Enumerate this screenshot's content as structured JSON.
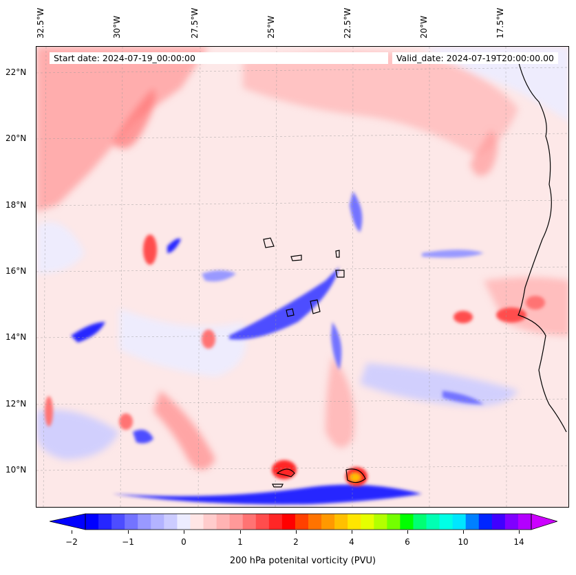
{
  "lon_labels": [
    "32.5°W",
    "30°W",
    "27.5°W",
    "25°W",
    "22.5°W",
    "20°W",
    "17.5°W"
  ],
  "lat_labels": [
    "22°N",
    "20°N",
    "18°N",
    "16°N",
    "14°N",
    "12°N",
    "10°N"
  ],
  "start_date": "Start date: 2024-07-19_00:00:00",
  "valid_date": "Valid_date: 2024-07-19T20:00:00.00",
  "colorbar": {
    "title": "200 hPa potenital vorticity (PVU)",
    "ticks": [
      "−2",
      "−1",
      "0",
      "1",
      "2",
      "4",
      "6",
      "10",
      "14"
    ],
    "colors": [
      "#0000ff",
      "#2626ff",
      "#4d4dff",
      "#7373ff",
      "#9999ff",
      "#b3b3ff",
      "#ccccff",
      "#ececff",
      "#ffe6e6",
      "#ffcccc",
      "#ffb3b3",
      "#ff9999",
      "#ff7373",
      "#ff4d4d",
      "#ff2626",
      "#ff0000",
      "#ff4000",
      "#ff7300",
      "#ff9900",
      "#ffc000",
      "#ffe600",
      "#e6ff00",
      "#b3ff00",
      "#73ff00",
      "#00ff00",
      "#00ff73",
      "#00ffb3",
      "#00ffe6",
      "#00e6ff",
      "#0080ff",
      "#0026ff",
      "#4000ff",
      "#8000ff",
      "#b300ff"
    ]
  }
}
